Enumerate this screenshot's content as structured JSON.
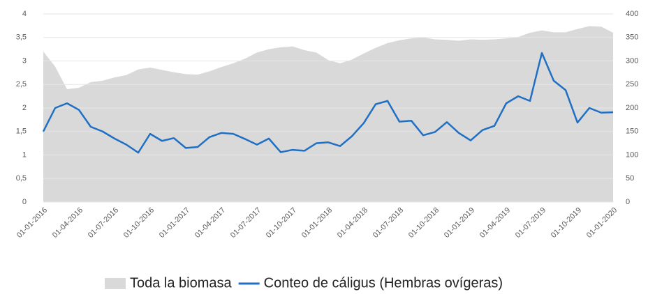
{
  "chart_data": {
    "type": "line",
    "categories": [
      "01-01-2016",
      null,
      null,
      "01-04-2016",
      null,
      null,
      "01-07-2016",
      null,
      null,
      "01-10-2016",
      null,
      null,
      "01-01-2017",
      null,
      null,
      "01-04-2017",
      null,
      null,
      "01-07-2017",
      null,
      null,
      "01-10-2017",
      null,
      null,
      "01-01-2018",
      null,
      null,
      "01-04-2018",
      null,
      null,
      "01-07-2018",
      null,
      null,
      "01-10-2018",
      null,
      null,
      "01-01-2019",
      null,
      null,
      "01-04-2019",
      null,
      null,
      "01-07-2019",
      null,
      null,
      "01-10-2019",
      null,
      null,
      "01-01-2020"
    ],
    "series": [
      {
        "name": "Toda la biomasa",
        "type": "area",
        "axis": "y2",
        "color": "#d9d9d9",
        "values": [
          320,
          288,
          240,
          243,
          255,
          258,
          265,
          270,
          282,
          286,
          281,
          276,
          272,
          271,
          278,
          287,
          295,
          305,
          318,
          325,
          329,
          331,
          323,
          318,
          302,
          295,
          303,
          316,
          328,
          338,
          344,
          348,
          350,
          346,
          345,
          343,
          346,
          345,
          346,
          348,
          351,
          360,
          365,
          361,
          361,
          368,
          374,
          373,
          360
        ]
      },
      {
        "name": "Conteo de cáligus (Hembras ovígeras)",
        "type": "line",
        "color": "#1f6fc5",
        "values": [
          1.5,
          2.0,
          2.1,
          1.96,
          1.6,
          1.5,
          1.35,
          1.22,
          1.05,
          1.45,
          1.3,
          1.36,
          1.15,
          1.17,
          1.38,
          1.47,
          1.45,
          1.34,
          1.22,
          1.35,
          1.06,
          1.11,
          1.09,
          1.25,
          1.27,
          1.19,
          1.4,
          1.68,
          2.08,
          2.15,
          1.71,
          1.73,
          1.42,
          1.49,
          1.7,
          1.47,
          1.31,
          1.53,
          1.62,
          2.1,
          2.25,
          2.15,
          3.17,
          2.58,
          2.38,
          1.69,
          2.0,
          1.9,
          1.91
        ]
      }
    ],
    "ylim": [
      0,
      4
    ],
    "yticks": [
      0,
      {
        "value": 0.5,
        "label": "0,5"
      },
      1,
      {
        "value": 1.5,
        "label": "1,5"
      },
      2,
      {
        "value": 2.5,
        "label": "2,5"
      },
      3,
      {
        "value": 3.5,
        "label": "3,5"
      },
      4
    ],
    "y2lim": [
      0,
      400
    ],
    "y2ticks": [
      0,
      50,
      100,
      150,
      200,
      250,
      300,
      350,
      400
    ],
    "grid": true,
    "legend": "bottom"
  }
}
